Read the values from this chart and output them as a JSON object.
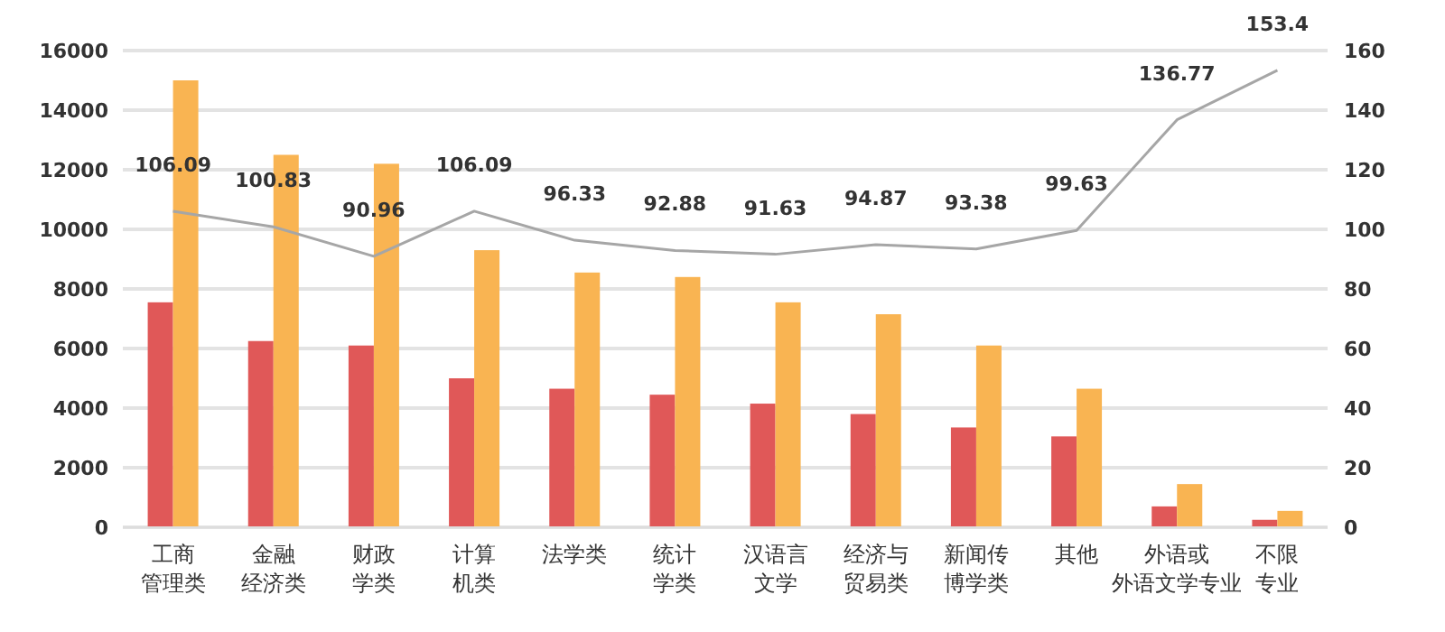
{
  "chart_data": {
    "type": "bar",
    "categories": [
      "工商管理类",
      "金融经济类",
      "财政学类",
      "计算机类",
      "法学类",
      "统计学类",
      "汉语言文学",
      "经济与贸易类",
      "新闻传博学类",
      "其他",
      "外语或外语文学专业",
      "不限专业"
    ],
    "series": [
      {
        "color": "#e05858",
        "values": [
          7550,
          6250,
          6100,
          5000,
          4650,
          4450,
          4150,
          3800,
          3350,
          3050,
          700,
          250
        ]
      },
      {
        "color": "#f9b452",
        "values": [
          15000,
          12500,
          12200,
          9300,
          8550,
          8400,
          7550,
          7150,
          6100,
          4650,
          1450,
          550
        ]
      },
      {
        "type": "line",
        "axis": "y2",
        "color": "#a6a6a6",
        "data_labels": true,
        "marker": "none",
        "values": [
          106.09,
          100.83,
          90.96,
          106.09,
          96.33,
          92.88,
          91.63,
          94.87,
          93.38,
          99.63,
          136.77,
          153.4
        ]
      }
    ],
    "ylim": [
      0,
      16000
    ],
    "yticks": [
      0,
      2000,
      4000,
      6000,
      8000,
      10000,
      12000,
      14000,
      16000
    ],
    "y2lim": [
      0,
      160
    ],
    "y2ticks": [
      0,
      20,
      40,
      60,
      80,
      100,
      120,
      140,
      160
    ],
    "grid": "y"
  }
}
